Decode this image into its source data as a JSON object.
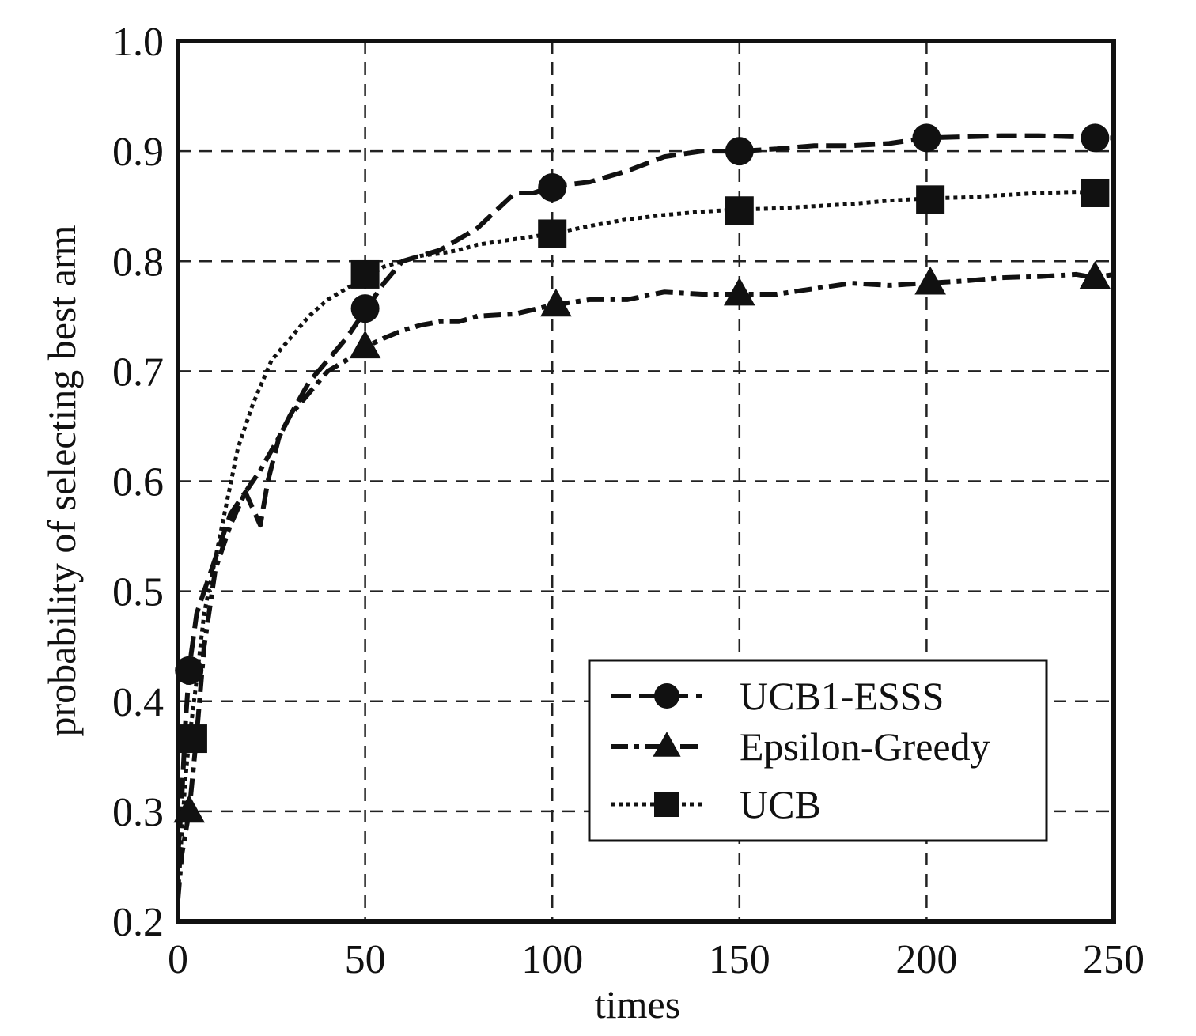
{
  "chart_data": {
    "type": "line",
    "xlabel": "times",
    "ylabel": "probability of selecting best arm",
    "xlim": [
      0,
      250
    ],
    "ylim": [
      0.2,
      1.0
    ],
    "xticks": [
      0,
      50,
      100,
      150,
      200,
      250
    ],
    "yticks": [
      0.2,
      0.3,
      0.4,
      0.5,
      0.6,
      0.7,
      0.8,
      0.9,
      1.0
    ],
    "x_tick_labels": [
      "0",
      "50",
      "100",
      "150",
      "200",
      "250"
    ],
    "y_tick_labels": [
      "0.2",
      "0.3",
      "0.4",
      "0.5",
      "0.6",
      "0.7",
      "0.8",
      "0.9",
      "1.0"
    ],
    "grid": true,
    "legend_position": "lower-right",
    "series": [
      {
        "name": "UCB1-ESSS",
        "line_style": "dashed",
        "marker": "circle",
        "color": "#111111",
        "x": [
          0,
          1,
          2,
          3,
          5,
          7,
          10,
          14,
          18,
          22,
          24,
          27,
          30,
          35,
          40,
          45,
          50,
          55,
          60,
          65,
          70,
          80,
          90,
          95,
          100,
          110,
          120,
          130,
          140,
          150,
          160,
          170,
          180,
          190,
          200,
          210,
          220,
          230,
          240,
          244,
          250
        ],
        "y": [
          0.26,
          0.31,
          0.38,
          0.43,
          0.48,
          0.5,
          0.53,
          0.57,
          0.59,
          0.56,
          0.6,
          0.64,
          0.66,
          0.69,
          0.71,
          0.73,
          0.755,
          0.78,
          0.8,
          0.805,
          0.81,
          0.83,
          0.862,
          0.862,
          0.868,
          0.872,
          0.882,
          0.895,
          0.9,
          0.9,
          0.902,
          0.905,
          0.905,
          0.907,
          0.912,
          0.913,
          0.914,
          0.914,
          0.913,
          0.912,
          0.912
        ],
        "marker_x": [
          3,
          50,
          100,
          150,
          200,
          245
        ],
        "marker_y": [
          0.428,
          0.757,
          0.867,
          0.9,
          0.912,
          0.912
        ]
      },
      {
        "name": "Epsilon-Greedy",
        "line_style": "dash-dot",
        "marker": "triangle",
        "color": "#111111",
        "x": [
          0,
          1,
          2,
          3,
          5,
          7,
          10,
          14,
          18,
          22,
          27,
          30,
          35,
          40,
          45,
          50,
          55,
          60,
          65,
          70,
          75,
          80,
          90,
          100,
          110,
          120,
          130,
          140,
          150,
          160,
          170,
          180,
          190,
          200,
          210,
          220,
          230,
          240,
          245,
          250
        ],
        "y": [
          0.22,
          0.26,
          0.28,
          0.3,
          0.37,
          0.45,
          0.52,
          0.56,
          0.59,
          0.61,
          0.64,
          0.66,
          0.68,
          0.7,
          0.71,
          0.722,
          0.73,
          0.737,
          0.742,
          0.745,
          0.745,
          0.75,
          0.752,
          0.76,
          0.765,
          0.765,
          0.772,
          0.77,
          0.77,
          0.77,
          0.775,
          0.78,
          0.778,
          0.78,
          0.782,
          0.785,
          0.786,
          0.788,
          0.785,
          0.788
        ],
        "marker_x": [
          3,
          50,
          101,
          150,
          201,
          245
        ],
        "marker_y": [
          0.3,
          0.722,
          0.76,
          0.77,
          0.78,
          0.785
        ]
      },
      {
        "name": "UCB",
        "line_style": "dotted",
        "marker": "square",
        "color": "#111111",
        "x": [
          0,
          1,
          2,
          3,
          5,
          7,
          10,
          13,
          16,
          20,
          25,
          30,
          35,
          40,
          45,
          50,
          55,
          60,
          65,
          70,
          75,
          80,
          90,
          100,
          110,
          120,
          130,
          140,
          150,
          160,
          170,
          180,
          190,
          200,
          210,
          220,
          230,
          240,
          245,
          250
        ],
        "y": [
          0.22,
          0.28,
          0.33,
          0.365,
          0.42,
          0.48,
          0.53,
          0.58,
          0.63,
          0.67,
          0.71,
          0.73,
          0.75,
          0.765,
          0.775,
          0.785,
          0.795,
          0.8,
          0.805,
          0.807,
          0.81,
          0.815,
          0.82,
          0.825,
          0.832,
          0.838,
          0.842,
          0.845,
          0.847,
          0.848,
          0.85,
          0.852,
          0.855,
          0.857,
          0.858,
          0.86,
          0.862,
          0.863,
          0.862,
          0.865
        ],
        "marker_x": [
          4,
          50,
          100,
          150,
          201,
          245
        ],
        "marker_y": [
          0.366,
          0.788,
          0.825,
          0.846,
          0.856,
          0.862
        ]
      }
    ]
  }
}
